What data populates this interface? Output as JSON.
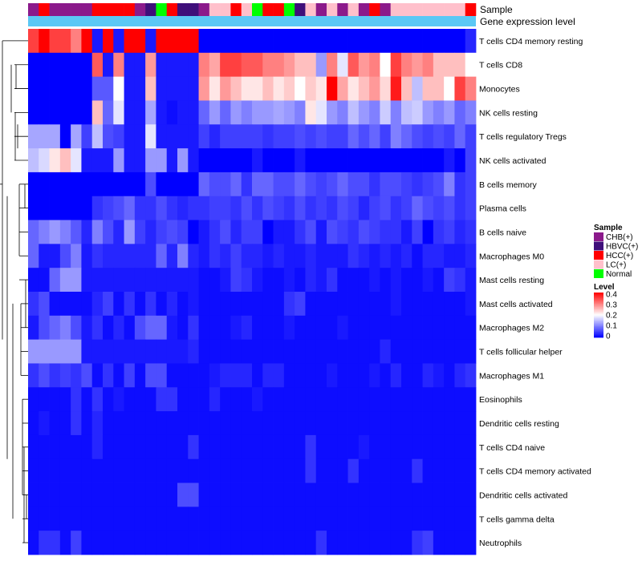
{
  "chart_data": {
    "type": "heatmap",
    "title": "",
    "annotation_tracks": {
      "sample_label": "Sample",
      "gene_label": "Gene expression level"
    },
    "colors": {
      "sample": {
        "CHB(+)": "#8B1A8B",
        "HBVC(+)": "#3F0F7A",
        "HCC(+)": "#FF0000",
        "LC(+)": "#FFC0CB",
        "Normal": "#00FF00"
      },
      "gene_bar": "#5BC8F5",
      "scale": {
        "low": "#0000FF",
        "mid": "#FFFFFF",
        "high": "#FF0000"
      }
    },
    "sample_groups": [
      "CHB(+)",
      "HCC(+)",
      "CHB(+)",
      "CHB(+)",
      "CHB(+)",
      "CHB(+)",
      "HCC(+)",
      "HCC(+)",
      "HCC(+)",
      "HCC(+)",
      "CHB(+)",
      "HBVC(+)",
      "Normal",
      "HCC(+)",
      "HBVC(+)",
      "HBVC(+)",
      "CHB(+)",
      "LC(+)",
      "LC(+)",
      "HCC(+)",
      "LC(+)",
      "Normal",
      "HCC(+)",
      "HCC(+)",
      "Normal",
      "HBVC(+)",
      "LC(+)",
      "CHB(+)",
      "LC(+)",
      "CHB(+)",
      "LC(+)",
      "CHB(+)",
      "HCC(+)",
      "CHB(+)",
      "LC(+)",
      "LC(+)",
      "LC(+)",
      "LC(+)",
      "LC(+)",
      "LC(+)",
      "LC(+)",
      "HCC(+)"
    ],
    "rows": [
      "T cells CD4 memory resting",
      "T cells CD8",
      "Monocytes",
      "NK cells resting",
      "T cells regulatory  Tregs",
      "NK cells activated",
      "B cells memory",
      "Plasma cells",
      "B cells naive",
      "Macrophages M0",
      "Mast cells resting",
      "Mast cells activated",
      "Macrophages M2",
      "T cells follicular helper",
      "Macrophages M1",
      "Eosinophils",
      "Dendritic cells resting",
      "T cells CD4 naive",
      "T cells CD4 memory activated",
      "Dendritic cells activated",
      "T cells gamma delta",
      "Neutrophils"
    ],
    "values": [
      [
        0.35,
        0.4,
        0.35,
        0.35,
        0.3,
        0.4,
        0.02,
        0.4,
        0.02,
        0.4,
        0.4,
        0.02,
        0.4,
        0.4,
        0.4,
        0.4,
        0,
        0,
        0,
        0,
        0,
        0,
        0,
        0,
        0,
        0,
        0,
        0,
        0,
        0,
        0,
        0,
        0,
        0,
        0,
        0,
        0,
        0,
        0,
        0,
        0,
        0.03
      ],
      [
        0,
        0,
        0,
        0,
        0,
        0,
        0.33,
        0.02,
        0.3,
        0.02,
        0.02,
        0.28,
        0.02,
        0.02,
        0.02,
        0.02,
        0.3,
        0.27,
        0.35,
        0.35,
        0.33,
        0.33,
        0.3,
        0.3,
        0.28,
        0.25,
        0.25,
        0.12,
        0.3,
        0.18,
        0.33,
        0.28,
        0.3,
        0.2,
        0.35,
        0.3,
        0.28,
        0.3,
        0.25,
        0.25,
        0.25,
        0.2
      ],
      [
        0,
        0,
        0,
        0,
        0,
        0,
        0.07,
        0.07,
        0.2,
        0.02,
        0.02,
        0.25,
        0.02,
        0.02,
        0.02,
        0.02,
        0.28,
        0.22,
        0.28,
        0.25,
        0.22,
        0.22,
        0.25,
        0.22,
        0.24,
        0.2,
        0.24,
        0.22,
        0.4,
        0.27,
        0.22,
        0.25,
        0.28,
        0.23,
        0.38,
        0.25,
        0.15,
        0.25,
        0.25,
        0.2,
        0.35,
        0.3
      ],
      [
        0,
        0,
        0,
        0,
        0,
        0,
        0.25,
        0.08,
        0.18,
        0.02,
        0.02,
        0.13,
        0.02,
        0.01,
        0.02,
        0.02,
        0.08,
        0.12,
        0.08,
        0.12,
        0.1,
        0.12,
        0.12,
        0.13,
        0.12,
        0.1,
        0.22,
        0.18,
        0.12,
        0.1,
        0.15,
        0.12,
        0.1,
        0.16,
        0.1,
        0.15,
        0.16,
        0.12,
        0.1,
        0.12,
        0.08,
        0.1
      ],
      [
        0.13,
        0.13,
        0.13,
        0,
        0.13,
        0.05,
        0.15,
        0.06,
        0.05,
        0.02,
        0.02,
        0.18,
        0.02,
        0.02,
        0.02,
        0.02,
        0.05,
        0.03,
        0.05,
        0.05,
        0.05,
        0.05,
        0.04,
        0.05,
        0.05,
        0.06,
        0.05,
        0.06,
        0.05,
        0.05,
        0.08,
        0.06,
        0.08,
        0.05,
        0.1,
        0.08,
        0.06,
        0.05,
        0.06,
        0.05,
        0.08,
        0.05
      ],
      [
        0.15,
        0.17,
        0.22,
        0.25,
        0.18,
        0.02,
        0.02,
        0.02,
        0.12,
        0.02,
        0.02,
        0.12,
        0.12,
        0.02,
        0.12,
        0.02,
        0,
        0,
        0,
        0,
        0,
        0.02,
        0,
        0,
        0,
        0.02,
        0,
        0,
        0,
        0,
        0,
        0,
        0,
        0,
        0,
        0,
        0,
        0,
        0,
        0.02,
        0,
        0.05
      ],
      [
        0,
        0,
        0,
        0,
        0,
        0,
        0,
        0,
        0,
        0,
        0,
        0.06,
        0,
        0,
        0,
        0,
        0.08,
        0.06,
        0.06,
        0.08,
        0.04,
        0.08,
        0.08,
        0.06,
        0.06,
        0.08,
        0.06,
        0.05,
        0.06,
        0.08,
        0.06,
        0.06,
        0.04,
        0.06,
        0.06,
        0.05,
        0.04,
        0.05,
        0.06,
        0.1,
        0.04,
        0.05
      ],
      [
        0,
        0,
        0,
        0,
        0,
        0,
        0.04,
        0.05,
        0.06,
        0.08,
        0.04,
        0.04,
        0.06,
        0.04,
        0.03,
        0.04,
        0.04,
        0.05,
        0.05,
        0.04,
        0.06,
        0.04,
        0.06,
        0.05,
        0.04,
        0.06,
        0.04,
        0.05,
        0.04,
        0.06,
        0.05,
        0.03,
        0.05,
        0.06,
        0.04,
        0.05,
        0.08,
        0.06,
        0.05,
        0.06,
        0.04,
        0.05
      ],
      [
        0.08,
        0.1,
        0.12,
        0.1,
        0.07,
        0.03,
        0.1,
        0.06,
        0.03,
        0.12,
        0.05,
        0.03,
        0.05,
        0.06,
        0.05,
        0,
        0.02,
        0.04,
        0.06,
        0.03,
        0.05,
        0.05,
        0,
        0.02,
        0.02,
        0.04,
        0.06,
        0.02,
        0.06,
        0.05,
        0.04,
        0.06,
        0.05,
        0.04,
        0.04,
        0.02,
        0.05,
        0,
        0.04,
        0.05,
        0.03,
        0.04
      ],
      [
        0.08,
        0.02,
        0.02,
        0.06,
        0.1,
        0.02,
        0.04,
        0.03,
        0.03,
        0.03,
        0.03,
        0.03,
        0.08,
        0.03,
        0.1,
        0.03,
        0.02,
        0.04,
        0.03,
        0.05,
        0.03,
        0.03,
        0.02,
        0.03,
        0.02,
        0.02,
        0.03,
        0.02,
        0.02,
        0.02,
        0.04,
        0.03,
        0.02,
        0.03,
        0.02,
        0.03,
        0.01,
        0.03,
        0.03,
        0.02,
        0.02,
        0.03
      ],
      [
        0.01,
        0.01,
        0.08,
        0.12,
        0.12,
        0.02,
        0.02,
        0.02,
        0.02,
        0.02,
        0.02,
        0.02,
        0.02,
        0.02,
        0.02,
        0.02,
        0.01,
        0.01,
        0.02,
        0.05,
        0.04,
        0.02,
        0.01,
        0.01,
        0.02,
        0.01,
        0.03,
        0.02,
        0.04,
        0.01,
        0.01,
        0.01,
        0.02,
        0.01,
        0.02,
        0.01,
        0.01,
        0.02,
        0.01,
        0.05,
        0.04,
        0.02
      ],
      [
        0.04,
        0.06,
        0.01,
        0.01,
        0.01,
        0.01,
        0.03,
        0.05,
        0.01,
        0.04,
        0.01,
        0.04,
        0.01,
        0.03,
        0.01,
        0.02,
        0.01,
        0.01,
        0.01,
        0.01,
        0.01,
        0.01,
        0.01,
        0.01,
        0.04,
        0.05,
        0.01,
        0.01,
        0.01,
        0.01,
        0.01,
        0.01,
        0.01,
        0.01,
        0.02,
        0.01,
        0.01,
        0.01,
        0.01,
        0.01,
        0.01,
        0.02
      ],
      [
        0.02,
        0.06,
        0.08,
        0.1,
        0.06,
        0.02,
        0.04,
        0.01,
        0.03,
        0.01,
        0.06,
        0.08,
        0.08,
        0.02,
        0.01,
        0.04,
        0.01,
        0.01,
        0.01,
        0.02,
        0.03,
        0.01,
        0.01,
        0.01,
        0.02,
        0.01,
        0.01,
        0.01,
        0.01,
        0.02,
        0.01,
        0.01,
        0.01,
        0.01,
        0.01,
        0.01,
        0.01,
        0.01,
        0.01,
        0.01,
        0.01,
        0.01
      ],
      [
        0.12,
        0.12,
        0.12,
        0.12,
        0.12,
        0.02,
        0.02,
        0.02,
        0.02,
        0.02,
        0.02,
        0.02,
        0.02,
        0.02,
        0.02,
        0.03,
        0.01,
        0.01,
        0.01,
        0.01,
        0.01,
        0.01,
        0.01,
        0.01,
        0.01,
        0.01,
        0.01,
        0.01,
        0.01,
        0.01,
        0.01,
        0.01,
        0.01,
        0.03,
        0.01,
        0.01,
        0.01,
        0.01,
        0.01,
        0.01,
        0.01,
        0.01
      ],
      [
        0.04,
        0.06,
        0.04,
        0.05,
        0.04,
        0.06,
        0.01,
        0.04,
        0.01,
        0.05,
        0.01,
        0.06,
        0.06,
        0.01,
        0.01,
        0.01,
        0.01,
        0.02,
        0.03,
        0.03,
        0.03,
        0.01,
        0.03,
        0.03,
        0.01,
        0.01,
        0.01,
        0.01,
        0.02,
        0.01,
        0.01,
        0.01,
        0.02,
        0.01,
        0.03,
        0.01,
        0.01,
        0.03,
        0.02,
        0.01,
        0.03,
        0.04
      ],
      [
        0.01,
        0.01,
        0.01,
        0.01,
        0.04,
        0.01,
        0.04,
        0.01,
        0.02,
        0.01,
        0.01,
        0.01,
        0.04,
        0.04,
        0.01,
        0.01,
        0.01,
        0.03,
        0.01,
        0.01,
        0.01,
        0.02,
        0.01,
        0.01,
        0.01,
        0.01,
        0.01,
        0.01,
        0.01,
        0.01,
        0.01,
        0.01,
        0.01,
        0.01,
        0.01,
        0.01,
        0.01,
        0.01,
        0.01,
        0.01,
        0.01,
        0.01
      ],
      [
        0.01,
        0.02,
        0.01,
        0.01,
        0.04,
        0.01,
        0.03,
        0.01,
        0.01,
        0.01,
        0.01,
        0.01,
        0.01,
        0.01,
        0.01,
        0.01,
        0.01,
        0.01,
        0.01,
        0.01,
        0.01,
        0.01,
        0.01,
        0.01,
        0.01,
        0.01,
        0.01,
        0.01,
        0.01,
        0.01,
        0.01,
        0.01,
        0.01,
        0.01,
        0.01,
        0.01,
        0.01,
        0.01,
        0.01,
        0.01,
        0.01,
        0.01
      ],
      [
        0.01,
        0.01,
        0.01,
        0.01,
        0.01,
        0.01,
        0.03,
        0.01,
        0.01,
        0.01,
        0.01,
        0.01,
        0.01,
        0.01,
        0.01,
        0.04,
        0.01,
        0.01,
        0.01,
        0.01,
        0.01,
        0.01,
        0.01,
        0.01,
        0.01,
        0.01,
        0.04,
        0.01,
        0.01,
        0.01,
        0.01,
        0.02,
        0.01,
        0.01,
        0.01,
        0.01,
        0.01,
        0.01,
        0.01,
        0.01,
        0.01,
        0.01
      ],
      [
        0.01,
        0.01,
        0.01,
        0.01,
        0.01,
        0.01,
        0.01,
        0.01,
        0.01,
        0.01,
        0.01,
        0.01,
        0.01,
        0.01,
        0.01,
        0.01,
        0.01,
        0.01,
        0.01,
        0.01,
        0.01,
        0.01,
        0.01,
        0.01,
        0.01,
        0.01,
        0.04,
        0.01,
        0.01,
        0.01,
        0.04,
        0.01,
        0.01,
        0.01,
        0.01,
        0.01,
        0.04,
        0.01,
        0.01,
        0.01,
        0.01,
        0.01
      ],
      [
        0.01,
        0.01,
        0.01,
        0.01,
        0.01,
        0.01,
        0.01,
        0.01,
        0.01,
        0.01,
        0.01,
        0.01,
        0.01,
        0.01,
        0.06,
        0.06,
        0.01,
        0.01,
        0.01,
        0.01,
        0.01,
        0.01,
        0.01,
        0.01,
        0.01,
        0.01,
        0.01,
        0.01,
        0.01,
        0.01,
        0.01,
        0.01,
        0.01,
        0.01,
        0.01,
        0.01,
        0.01,
        0.01,
        0.01,
        0.01,
        0.01,
        0.01
      ],
      [
        0.01,
        0.01,
        0.01,
        0.01,
        0.01,
        0.01,
        0.01,
        0.01,
        0.01,
        0.01,
        0.01,
        0.01,
        0.01,
        0.01,
        0.01,
        0.01,
        0.01,
        0.01,
        0.01,
        0.01,
        0.01,
        0.01,
        0.01,
        0.01,
        0.01,
        0.01,
        0.01,
        0.01,
        0.01,
        0.01,
        0.01,
        0.01,
        0.01,
        0.01,
        0.01,
        0.01,
        0.01,
        0.01,
        0.01,
        0.01,
        0.01,
        0.01
      ],
      [
        0.01,
        0.04,
        0.04,
        0.01,
        0.05,
        0.01,
        0.01,
        0.01,
        0.01,
        0.01,
        0.01,
        0.01,
        0.01,
        0.01,
        0.01,
        0.01,
        0.01,
        0.01,
        0.01,
        0.01,
        0.01,
        0.01,
        0.01,
        0.01,
        0.01,
        0.01,
        0.01,
        0.04,
        0.01,
        0.01,
        0.01,
        0.01,
        0.01,
        0.01,
        0.01,
        0.01,
        0.04,
        0.05,
        0.01,
        0.01,
        0.01,
        0.01
      ]
    ],
    "legend_sample": {
      "title": "Sample",
      "items": [
        "CHB(+)",
        "HBVC(+)",
        "HCC(+)",
        "LC(+)",
        "Normal"
      ]
    },
    "legend_level": {
      "title": "Level",
      "ticks": [
        "0.4",
        "0.3",
        "0.2",
        "0.1",
        "0"
      ]
    },
    "zlim": [
      0,
      0.4
    ]
  }
}
